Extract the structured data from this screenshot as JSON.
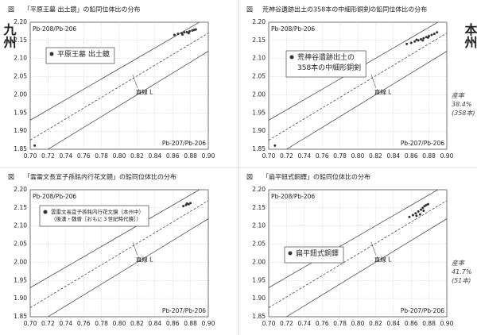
{
  "chart_data": [
    {
      "type": "scatter",
      "figure_label": "図",
      "title": "「平原王墓 出土鏡」の鉛同位体比の分布",
      "x_label": "Pb-207/Pb-206",
      "y_label": "Pb-208/Pb-206",
      "xlim": [
        0.7,
        0.9
      ],
      "ylim": [
        1.85,
        2.2
      ],
      "xticks": [
        {
          "value": 0.7,
          "label": "0.70"
        },
        0.72,
        0.74,
        0.76,
        0.78,
        {
          "value": 0.8,
          "label": "0.80"
        },
        0.82,
        0.84,
        0.86,
        0.88,
        {
          "value": 0.9,
          "label": "0.90"
        }
      ],
      "yticks": [
        1.85,
        {
          "value": 1.9,
          "label": "1.90"
        },
        1.95,
        {
          "value": 2.0,
          "label": "2.00"
        },
        2.05,
        {
          "value": 2.1,
          "label": "2.10"
        },
        2.15,
        {
          "value": 2.2,
          "label": "2.20"
        }
      ],
      "grid": true,
      "series": [
        {
          "name": "平原王墓 出土鏡",
          "color": "#333333",
          "x": [
            0.862,
            0.866,
            0.87,
            0.873,
            0.876,
            0.879,
            0.882,
            0.884,
            0.886,
            0.878,
            0.871,
            0.705
          ],
          "values": [
            2.165,
            2.168,
            2.17,
            2.172,
            2.173,
            2.175,
            2.177,
            2.179,
            2.18,
            2.17,
            2.166,
            1.86
          ]
        }
      ],
      "lines": [
        {
          "style": "solid",
          "x": [
            0.7,
            0.89
          ],
          "y": [
            1.93,
            2.2
          ]
        },
        {
          "style": "dashed",
          "x": [
            0.7,
            0.9
          ],
          "y": [
            1.875,
            2.17
          ]
        },
        {
          "style": "solid",
          "x": [
            0.72,
            0.9
          ],
          "y": [
            1.85,
            2.12
          ]
        }
      ],
      "annotation": "直線 L",
      "side_note": "九州"
    },
    {
      "type": "scatter",
      "figure_label": "図",
      "title": "荒神谷遺跡出土の358本の中細形銅剣の鉛同位体比の分布",
      "x_label": "Pb-207/Pb-206",
      "y_label": "Pb-208/Pb-206",
      "xlim": [
        0.7,
        0.9
      ],
      "ylim": [
        1.85,
        2.2
      ],
      "xticks": [
        {
          "value": 0.7,
          "label": "0.70"
        },
        0.72,
        0.74,
        0.76,
        0.78,
        {
          "value": 0.8,
          "label": "0.80"
        },
        0.82,
        0.84,
        0.86,
        0.88,
        {
          "value": 0.9,
          "label": "0.90"
        }
      ],
      "yticks": [
        1.85,
        {
          "value": 1.9,
          "label": "1.90"
        },
        1.95,
        {
          "value": 2.0,
          "label": "2.00"
        },
        2.05,
        {
          "value": 2.1,
          "label": "2.10"
        },
        2.15,
        {
          "value": 2.2,
          "label": "2.20"
        }
      ],
      "grid": true,
      "series": [
        {
          "name": "荒神谷遺跡出土の\n358本の中細形銅剣",
          "color": "#333333",
          "x": [
            0.855,
            0.86,
            0.864,
            0.868,
            0.871,
            0.874,
            0.877,
            0.88,
            0.883,
            0.886,
            0.889,
            0.866,
            0.873,
            0.879,
            0.707
          ],
          "values": [
            2.14,
            2.143,
            2.147,
            2.15,
            2.153,
            2.156,
            2.159,
            2.162,
            2.165,
            2.168,
            2.172,
            2.152,
            2.15,
            2.158,
            1.86
          ]
        }
      ],
      "lines": [
        {
          "style": "solid",
          "x": [
            0.7,
            0.89
          ],
          "y": [
            1.93,
            2.2
          ]
        },
        {
          "style": "dashed",
          "x": [
            0.7,
            0.9
          ],
          "y": [
            1.875,
            2.17
          ]
        },
        {
          "style": "solid",
          "x": [
            0.72,
            0.9
          ],
          "y": [
            1.85,
            2.12
          ]
        }
      ],
      "annotation": "直線 L",
      "side_note": "本州",
      "side_note_2": "産率\n38.4%\n(358本)"
    },
    {
      "type": "scatter",
      "figure_label": "図",
      "title": "「雲雷文長宜子孫銘内行花文鏡」の鉛同位体比の分布",
      "x_label": "Pb-207/Pb-206",
      "y_label": "Pb-208/Pb-206",
      "xlim": [
        0.7,
        0.9
      ],
      "ylim": [
        1.85,
        2.2
      ],
      "xticks": [
        {
          "value": 0.7,
          "label": "0.70"
        },
        0.72,
        0.74,
        0.76,
        0.78,
        {
          "value": 0.8,
          "label": "0.80"
        },
        0.82,
        0.84,
        0.86,
        0.88,
        {
          "value": 0.9,
          "label": "0.90"
        }
      ],
      "yticks": [
        1.85,
        {
          "value": 1.9,
          "label": "1.90"
        },
        1.95,
        {
          "value": 2.0,
          "label": "2.00"
        },
        2.05,
        {
          "value": 2.1,
          "label": "2.10"
        },
        2.15,
        {
          "value": 2.2,
          "label": "2.20"
        }
      ],
      "grid": true,
      "series": [
        {
          "name": "雲雷文長宜子孫銘内行花文鏡（本州中）\n（後漢・魏晋［おもに３世紀時代鏡］）",
          "color": "#333333",
          "x": [
            0.872,
            0.875,
            0.878,
            0.88,
            0.876
          ],
          "values": [
            2.155,
            2.158,
            2.16,
            2.163,
            2.162
          ]
        }
      ],
      "lines": [
        {
          "style": "solid",
          "x": [
            0.7,
            0.89
          ],
          "y": [
            1.93,
            2.2
          ]
        },
        {
          "style": "dashed",
          "x": [
            0.7,
            0.9
          ],
          "y": [
            1.875,
            2.17
          ]
        },
        {
          "style": "solid",
          "x": [
            0.72,
            0.9
          ],
          "y": [
            1.85,
            2.12
          ]
        }
      ],
      "annotation": "直線 L"
    },
    {
      "type": "scatter",
      "figure_label": "図",
      "title": "「扁平鈕式銅鐸」の鉛同位体比の分布",
      "x_label": "Pb-207/Pb-206",
      "y_label": "Pb-208/Pb-206",
      "xlim": [
        0.7,
        0.9
      ],
      "ylim": [
        1.85,
        2.2
      ],
      "xticks": [
        {
          "value": 0.7,
          "label": "0.70"
        },
        0.72,
        0.74,
        0.76,
        0.78,
        {
          "value": 0.8,
          "label": "0.80"
        },
        0.82,
        0.84,
        0.86,
        0.88,
        {
          "value": 0.9,
          "label": "0.90"
        }
      ],
      "yticks": [
        1.85,
        {
          "value": 1.9,
          "label": "1.90"
        },
        1.95,
        {
          "value": 2.0,
          "label": "2.00"
        },
        2.05,
        {
          "value": 2.1,
          "label": "2.10"
        },
        2.15,
        {
          "value": 2.2,
          "label": "2.20"
        }
      ],
      "grid": true,
      "series": [
        {
          "name": "扁平鈕式銅鐸",
          "color": "#333333",
          "x": [
            0.858,
            0.862,
            0.865,
            0.868,
            0.871,
            0.873,
            0.875,
            0.877,
            0.879,
            0.866,
            0.87,
            0.874
          ],
          "values": [
            2.125,
            2.13,
            2.135,
            2.14,
            2.145,
            2.15,
            2.155,
            2.158,
            2.16,
            2.128,
            2.132,
            2.142
          ]
        }
      ],
      "lines": [
        {
          "style": "solid",
          "x": [
            0.7,
            0.89
          ],
          "y": [
            1.93,
            2.2
          ]
        },
        {
          "style": "dashed",
          "x": [
            0.7,
            0.9
          ],
          "y": [
            1.875,
            2.17
          ]
        },
        {
          "style": "solid",
          "x": [
            0.72,
            0.9
          ],
          "y": [
            1.85,
            2.12
          ]
        }
      ],
      "annotation": "直線 L",
      "side_note_2": "産率\n41.7%\n(51本)"
    }
  ]
}
